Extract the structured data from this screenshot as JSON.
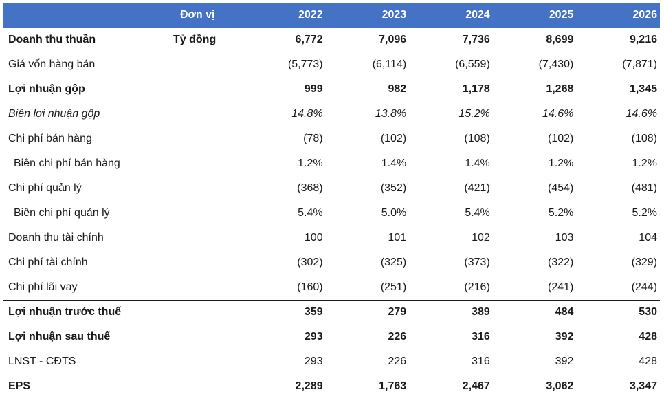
{
  "header": {
    "unit": "Đơn vị",
    "years": [
      "2022",
      "2023",
      "2024",
      "2025",
      "2026"
    ]
  },
  "rows": [
    {
      "label": "Doanh thu thuần",
      "unit": "Tỷ đồng",
      "values": [
        "6,772",
        "7,096",
        "7,736",
        "8,699",
        "9,216"
      ]
    },
    {
      "label": "Giá vốn hàng bán",
      "unit": "",
      "values": [
        "(5,773)",
        "(6,114)",
        "(6,559)",
        "(7,430)",
        "(7,871)"
      ]
    },
    {
      "label": "Lợi nhuận gộp",
      "unit": "",
      "values": [
        "999",
        "982",
        "1,178",
        "1,268",
        "1,345"
      ]
    },
    {
      "label": "Biên lợi nhuận gộp",
      "unit": "",
      "values": [
        "14.8%",
        "13.8%",
        "15.2%",
        "14.6%",
        "14.6%"
      ]
    },
    {
      "label": "Chi phí bán hàng",
      "unit": "",
      "values": [
        "(78)",
        "(102)",
        "(108)",
        "(102)",
        "(108)"
      ]
    },
    {
      "label": "Biên chi phí bán hàng",
      "unit": "",
      "values": [
        "1.2%",
        "1.4%",
        "1.4%",
        "1.2%",
        "1.2%"
      ]
    },
    {
      "label": "Chi phí quản lý",
      "unit": "",
      "values": [
        "(368)",
        "(352)",
        "(421)",
        "(454)",
        "(481)"
      ]
    },
    {
      "label": "Biên chi phí quản lý",
      "unit": "",
      "values": [
        "5.4%",
        "5.0%",
        "5.4%",
        "5.2%",
        "5.2%"
      ]
    },
    {
      "label": "Doanh thu tài chính",
      "unit": "",
      "values": [
        "100",
        "101",
        "102",
        "103",
        "104"
      ]
    },
    {
      "label": "Chi phí tài chính",
      "unit": "",
      "values": [
        "(302)",
        "(325)",
        "(373)",
        "(322)",
        "(329)"
      ]
    },
    {
      "label": "Chi phí lãi vay",
      "unit": "",
      "values": [
        "(160)",
        "(251)",
        "(216)",
        "(241)",
        "(244)"
      ]
    },
    {
      "label": "Lợi nhuận trước thuế",
      "unit": "",
      "values": [
        "359",
        "279",
        "389",
        "484",
        "530"
      ]
    },
    {
      "label": "Lợi nhuận sau thuế",
      "unit": "",
      "values": [
        "293",
        "226",
        "316",
        "392",
        "428"
      ]
    },
    {
      "label": "LNST - CĐTS",
      "unit": "",
      "values": [
        "293",
        "226",
        "316",
        "392",
        "428"
      ]
    },
    {
      "label": "EPS",
      "unit": "",
      "values": [
        "2,289",
        "1,763",
        "2,467",
        "3,062",
        "3,347"
      ]
    }
  ],
  "colors": {
    "header_bg": "#4472c4",
    "header_text": "#ffffff"
  }
}
